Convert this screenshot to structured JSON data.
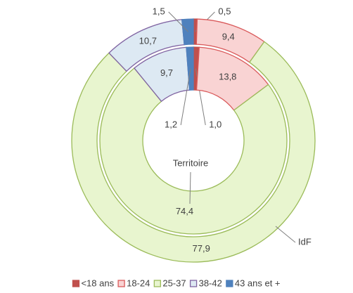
{
  "chart_data": {
    "type": "donut",
    "categories": [
      "<18 ans",
      "18-24",
      "25-37",
      "38-42",
      "43 ans et +"
    ],
    "colors": [
      "#c0504d",
      "#f9d3d3",
      "#e8f5cf",
      "#dde9f3",
      "#4f81bd"
    ],
    "border_colors": [
      "#c0504d",
      "#d9595a",
      "#9bbb59",
      "#8064a2",
      "#4f81bd"
    ],
    "series": [
      {
        "name": "Territoire",
        "values": [
          1.0,
          13.8,
          74.4,
          9.7,
          1.2
        ],
        "value_labels": [
          "1,0",
          "13,8",
          "74,4",
          "9,7",
          "1,2"
        ]
      },
      {
        "name": "IdF",
        "values": [
          0.5,
          9.4,
          77.9,
          10.7,
          1.5
        ],
        "value_labels": [
          "0,5",
          "9,4",
          "77,9",
          "10,7",
          "1,5"
        ]
      }
    ],
    "legend": "bottom"
  }
}
